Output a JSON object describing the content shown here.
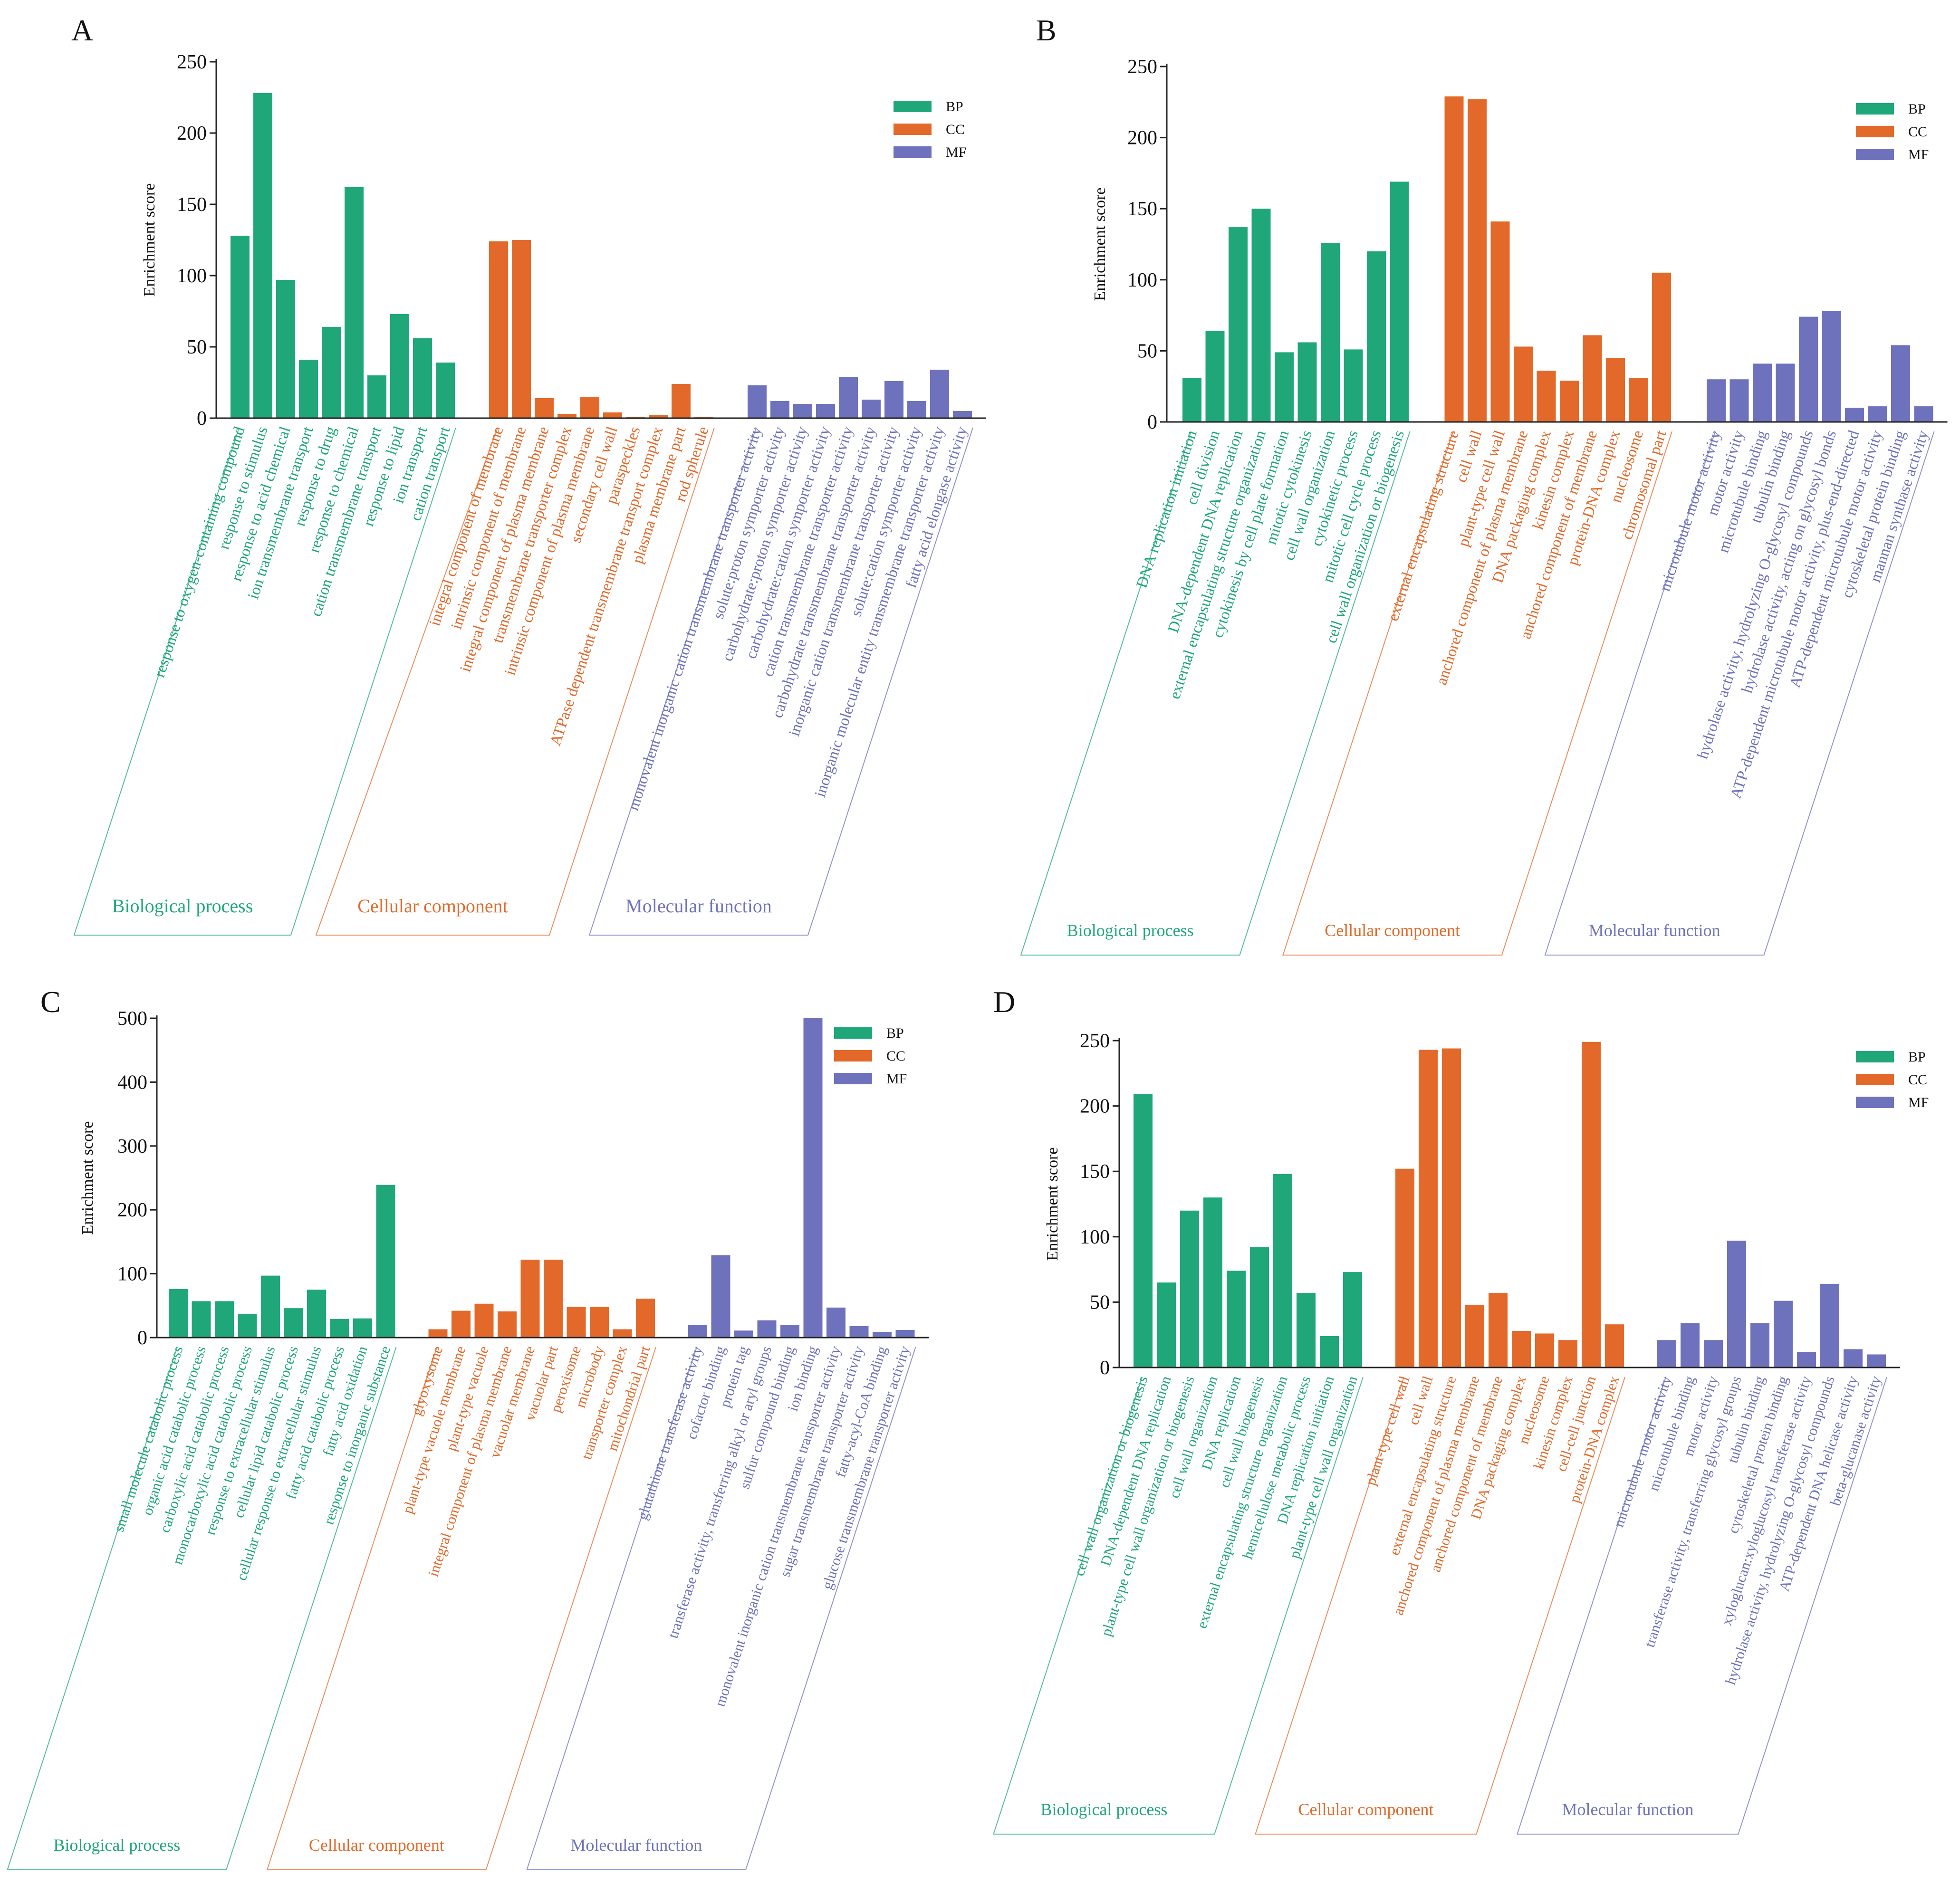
{
  "colors": {
    "BP": "#1fa77a",
    "CC": "#e2692a",
    "MF": "#6e72bd",
    "axis": "#222222"
  },
  "group_titles": {
    "BP": "Biological process",
    "CC": "Cellular component",
    "MF": "Molecular function"
  },
  "chart_data": [
    {
      "panel": "A",
      "type": "bar",
      "ylabel": "Enrichment score",
      "ylim": [
        0,
        250
      ],
      "yticks": [
        0,
        50,
        100,
        150,
        200,
        250
      ],
      "legend": [
        "BP",
        "CC",
        "MF"
      ],
      "legend_position": "top-right",
      "groups": [
        {
          "key": "BP",
          "categories": [
            "response to oxygen-containing compound",
            "response to stimulus",
            "response to acid chemical",
            "ion transmembrane transport",
            "response to drug",
            "response to chemical",
            "cation transmembrane transport",
            "response to lipid",
            "ion transport",
            "cation transport"
          ],
          "values": [
            128,
            228,
            97,
            41,
            64,
            162,
            30,
            73,
            56,
            39
          ]
        },
        {
          "key": "CC",
          "categories": [
            "integral component of membrane",
            "intrinsic component of membrane",
            "integral component of plasma membrane",
            "transmembrane transporter complex",
            "intrinsic component of plasma membrane",
            "secondary cell wall",
            "paraspeckles",
            "ATPase dependent transmembrane transport complex",
            "plasma membrane part",
            "rod spherule"
          ],
          "values": [
            124,
            125,
            14,
            3,
            15,
            4,
            1,
            2,
            24,
            1
          ]
        },
        {
          "key": "MF",
          "categories": [
            "monovalent inorganic cation transmembrane transporter activity",
            "solute:proton symporter activity",
            "carbohydrate:proton symporter activity",
            "carbohydrate:cation symporter activity",
            "cation transmembrane transporter activity",
            "carbohydrate transmembrane transporter activity",
            "inorganic cation transmembrane transporter activity",
            "solute:cation symporter activity",
            "inorganic molecular entity transmembrane transporter activity",
            "fatty acid elongase activity"
          ],
          "values": [
            23,
            12,
            10,
            10,
            29,
            13,
            26,
            12,
            34,
            5
          ]
        }
      ]
    },
    {
      "panel": "B",
      "type": "bar",
      "ylabel": "Enrichment score",
      "ylim": [
        0,
        250
      ],
      "yticks": [
        0,
        50,
        100,
        150,
        200,
        250
      ],
      "legend": [
        "BP",
        "CC",
        "MF"
      ],
      "legend_position": "top-right",
      "groups": [
        {
          "key": "BP",
          "categories": [
            "DNA replication initiation",
            "cell division",
            "DNA-dependent DNA replication",
            "external encapsulating structure organization",
            "cytokinesis by cell plate formation",
            "mitotic cytokinesis",
            "cell wall organization",
            "cytokinetic process",
            "mitotic cell cycle process",
            "cell wall organization or biogenesis"
          ],
          "values": [
            31,
            64,
            137,
            150,
            49,
            56,
            126,
            51,
            120,
            169
          ]
        },
        {
          "key": "CC",
          "categories": [
            "external encapsulating structure",
            "cell wall",
            "plant-type cell wall",
            "anchored component of plasma membrane",
            "DNA packaging complex",
            "kinesin complex",
            "anchored component of membrane",
            "protein-DNA complex",
            "nucleosome",
            "chromosomal part"
          ],
          "values": [
            229,
            227,
            141,
            53,
            36,
            29,
            61,
            45,
            31,
            105
          ]
        },
        {
          "key": "MF",
          "categories": [
            "microtubule motor activity",
            "motor activity",
            "microtubule binding",
            "tubulin binding",
            "hydrolase activity, hydrolyzing O-glycosyl compounds",
            "hydrolase activity, acting on glycosyl bonds",
            "ATP-dependent microtubule motor activity, plus-end-directed",
            "ATP-dependent microtubule motor activity",
            "cytoskeletal protein binding",
            "mannan synthase activity"
          ],
          "values": [
            30,
            30,
            41,
            41,
            74,
            78,
            10,
            11,
            54,
            11
          ]
        }
      ]
    },
    {
      "panel": "C",
      "type": "bar",
      "ylabel": "Enrichment score",
      "ylim": [
        0,
        500
      ],
      "yticks": [
        0,
        100,
        200,
        300,
        400,
        500
      ],
      "legend": [
        "BP",
        "CC",
        "MF"
      ],
      "legend_position": "top-right",
      "groups": [
        {
          "key": "BP",
          "categories": [
            "small molecule catabolic process",
            "organic acid catabolic process",
            "carboxylic acid catabolic process",
            "monocarboxylic acid catabolic process",
            "response to extracellular stimulus",
            "cellular lipid catabolic process",
            "cellular response to extracellular stimulus",
            "fatty acid catabolic process",
            "fatty acid oxidation",
            "response to inorganic substance"
          ],
          "values": [
            76,
            57,
            57,
            37,
            97,
            46,
            75,
            29,
            30,
            239
          ]
        },
        {
          "key": "CC",
          "categories": [
            "glyoxysome",
            "plant-type vacuole membrane",
            "plant-type vacuole",
            "integral component of plasma membrane",
            "vacuolar membrane",
            "vacuolar part",
            "peroxisome",
            "microbody",
            "transporter complex",
            "mitochondrial part"
          ],
          "values": [
            13,
            42,
            53,
            41,
            122,
            122,
            48,
            48,
            13,
            61
          ]
        },
        {
          "key": "MF",
          "categories": [
            "glutathione transferase activity",
            "cofactor binding",
            "protein tag",
            "transferase activity, transferring alkyl or aryl groups",
            "sulfur compound binding",
            "ion binding",
            "monovalent inorganic cation transmembrane transporter activity",
            "sugar transmembrane transporter activity",
            "fatty-acyl-CoA binding",
            "glucose transmembrane transporter activity"
          ],
          "values": [
            20,
            129,
            11,
            27,
            20,
            500,
            47,
            18,
            9,
            12
          ]
        }
      ]
    },
    {
      "panel": "D",
      "type": "bar",
      "ylabel": "Enrichment score",
      "ylim": [
        0,
        250
      ],
      "yticks": [
        0,
        50,
        100,
        150,
        200,
        250
      ],
      "legend": [
        "BP",
        "CC",
        "MF"
      ],
      "legend_position": "top-right",
      "groups": [
        {
          "key": "BP",
          "categories": [
            "cell wall organization or biogenesis",
            "DNA-dependent DNA replication",
            "plant-type cell wall organization or biogenesis",
            "cell wall organization",
            "DNA replication",
            "cell wall biogenesis",
            "external encapsulating structure organization",
            "hemicellulose metabolic process",
            "DNA replication initiation",
            "plant-type cell wall organization"
          ],
          "values": [
            209,
            65,
            120,
            130,
            74,
            92,
            148,
            57,
            24,
            73
          ]
        },
        {
          "key": "CC",
          "categories": [
            "plant-type cell wall",
            "cell wall",
            "external encapsulating structure",
            "anchored component of plasma membrane",
            "anchored component of membrane",
            "DNA packaging complex",
            "nucleosome",
            "kinesin complex",
            "cell-cell junction",
            "protein-DNA complex"
          ],
          "values": [
            152,
            243,
            244,
            48,
            57,
            28,
            26,
            21,
            249,
            33
          ]
        },
        {
          "key": "MF",
          "categories": [
            "microtubule motor activity",
            "microtubule binding",
            "motor activity",
            "transferase activity, transferring glycosyl groups",
            "tubulin binding",
            "cytoskeletal protein binding",
            "xyloglucan:xyloglucosyl transferase activity",
            "hydrolase activity, hydrolyzing O-glycosyl compounds",
            "ATP-dependent DNA helicase activity",
            "beta-glucanase activity"
          ],
          "values": [
            21,
            34,
            21,
            97,
            34,
            51,
            12,
            64,
            14,
            10
          ]
        }
      ]
    }
  ]
}
